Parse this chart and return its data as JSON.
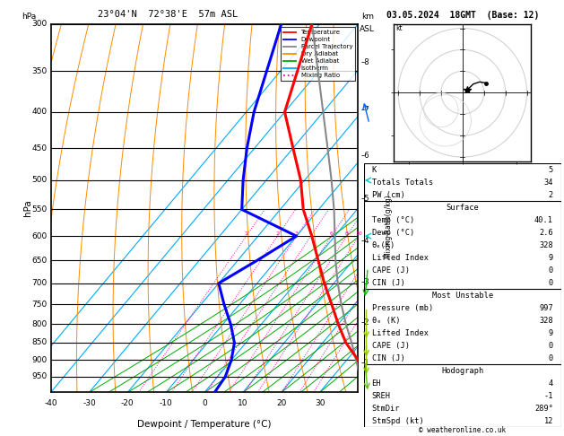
{
  "title_left": "23°04'N  72°38'E  57m ASL",
  "title_right": "03.05.2024  18GMT  (Base: 12)",
  "xlabel": "Dewpoint / Temperature (°C)",
  "ylabel_left": "hPa",
  "pressure_labels": [
    300,
    350,
    400,
    450,
    500,
    550,
    600,
    650,
    700,
    750,
    800,
    850,
    900,
    950
  ],
  "km_ticks": [
    1,
    2,
    3,
    4,
    5,
    6,
    7,
    8
  ],
  "km_pressures": [
    907,
    795,
    697,
    609,
    531,
    461,
    397,
    340
  ],
  "T_min": -40,
  "T_max": 40,
  "temp_ticks": [
    -40,
    -30,
    -20,
    -10,
    0,
    10,
    20,
    30
  ],
  "p_min": 300,
  "p_max": 1000,
  "skew_factor": 1.0,
  "isotherm_color": "#00aaff",
  "dry_adiabat_color": "#ff8c00",
  "wet_adiabat_color": "#00aa00",
  "mixing_ratio_color": "#ff00aa",
  "mixing_ratio_values": [
    1,
    2,
    3,
    4,
    6,
    8,
    10,
    15,
    20,
    25
  ],
  "temp_profile_T": [
    40.1,
    38.0,
    33.0,
    26.0,
    20.0,
    14.0,
    7.5,
    1.0,
    -6.0,
    -14.0,
    -21.0,
    -30.0,
    -40.0,
    -52.0
  ],
  "temp_profile_P": [
    997,
    950,
    900,
    850,
    800,
    750,
    700,
    650,
    600,
    550,
    500,
    450,
    400,
    300
  ],
  "dewp_profile_T": [
    2.6,
    2.0,
    0.0,
    -3.0,
    -8.0,
    -14.0,
    -20.0,
    -15.0,
    -10.0,
    -30.0,
    -36.0,
    -42.0,
    -48.0,
    -60.0
  ],
  "dewp_profile_P": [
    997,
    950,
    900,
    850,
    800,
    750,
    700,
    650,
    600,
    550,
    500,
    450,
    400,
    300
  ],
  "parcel_T": [
    40.1,
    37.0,
    32.5,
    27.5,
    22.0,
    16.5,
    11.0,
    5.5,
    0.0,
    -6.0,
    -13.0,
    -21.0,
    -30.0,
    -52.0
  ],
  "parcel_P": [
    997,
    950,
    900,
    850,
    800,
    750,
    700,
    650,
    600,
    550,
    500,
    450,
    400,
    300
  ],
  "temp_color": "#ff0000",
  "dewp_color": "#0000ff",
  "parcel_color": "#888888",
  "legend_items": [
    "Temperature",
    "Dewpoint",
    "Parcel Trajectory",
    "Dry Adiabat",
    "Wet Adiabat",
    "Isotherm",
    "Mixing Ratio"
  ],
  "legend_colors": [
    "#ff0000",
    "#0000ff",
    "#888888",
    "#ff8c00",
    "#00aa00",
    "#00aaff",
    "#ff00aa"
  ],
  "legend_styles": [
    "solid",
    "solid",
    "solid",
    "solid",
    "solid",
    "solid",
    "dotted"
  ],
  "info_table": {
    "K": "5",
    "Totals Totals": "34",
    "PW (cm)": "2",
    "Surface_Temp": "40.1",
    "Surface_Dewp": "2.6",
    "Surface_theta_e": "328",
    "Surface_Lifted": "9",
    "Surface_CAPE": "0",
    "Surface_CIN": "0",
    "MU_Pressure": "997",
    "MU_theta_e": "328",
    "MU_Lifted": "9",
    "MU_CAPE": "0",
    "MU_CIN": "0",
    "Hodo_EH": "4",
    "Hodo_SREH": "-1",
    "Hodo_StmDir": "289°",
    "Hodo_StmSpd": "12"
  },
  "copyright": "© weatheronline.co.uk"
}
